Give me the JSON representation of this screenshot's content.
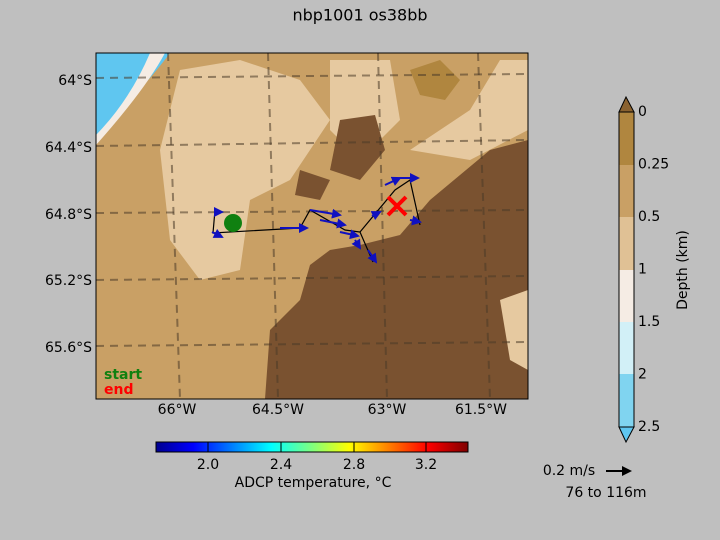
{
  "title": "nbp1001 os38bb",
  "map": {
    "lat_labels": [
      "64°S",
      "64.4°S",
      "64.8°S",
      "65.2°S",
      "65.6°S"
    ],
    "lon_labels": [
      "66°W",
      "64.5°W",
      "63°W",
      "61.5°W"
    ],
    "legend": {
      "start": "start",
      "end": "end"
    }
  },
  "depth_colorbar": {
    "label": "Depth (km)",
    "ticks": [
      "0",
      "0.25",
      "0.5",
      "1",
      "1.5",
      "2",
      "2.5"
    ]
  },
  "temperature_colorbar": {
    "label": "ADCP temperature, °C",
    "ticks": [
      "2.0",
      "2.4",
      "2.8",
      "3.2"
    ]
  },
  "scale": {
    "speed": "0.2 m/s",
    "depth_range": "76 to 116m"
  }
}
